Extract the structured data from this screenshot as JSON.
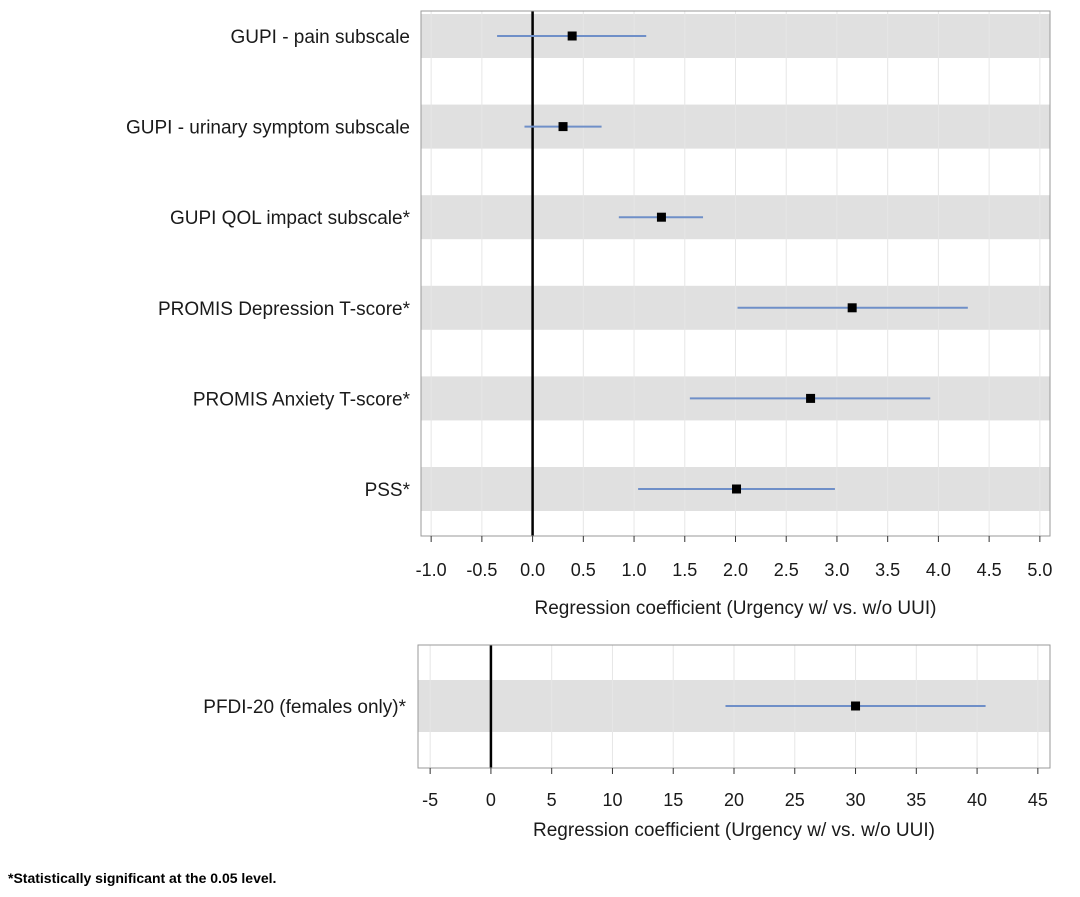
{
  "chart_data": [
    {
      "type": "forest",
      "xlabel": "Regression coefficient (Urgency w/ vs. w/o UUI)",
      "xlim": [
        -1.1,
        5.1
      ],
      "reference_line": 0,
      "grid": "vertical",
      "row_shading": "alternating",
      "ticks": [
        "-1.0",
        "-0.5",
        "0.0",
        "0.5",
        "1.0",
        "1.5",
        "2.0",
        "2.5",
        "3.0",
        "3.5",
        "4.0",
        "4.5",
        "5.0"
      ],
      "rows": [
        {
          "label": "GUPI - pain subscale",
          "estimate": 0.39,
          "lower": -0.35,
          "upper": 1.12
        },
        {
          "label": "GUPI - urinary symptom subscale",
          "estimate": 0.3,
          "lower": -0.08,
          "upper": 0.68
        },
        {
          "label": "GUPI QOL impact subscale*",
          "estimate": 1.27,
          "lower": 0.85,
          "upper": 1.68
        },
        {
          "label": "PROMIS Depression T-score*",
          "estimate": 3.15,
          "lower": 2.02,
          "upper": 4.29
        },
        {
          "label": "PROMIS Anxiety T-score*",
          "estimate": 2.74,
          "lower": 1.55,
          "upper": 3.92
        },
        {
          "label": "PSS*",
          "estimate": 2.01,
          "lower": 1.04,
          "upper": 2.98
        }
      ]
    },
    {
      "type": "forest",
      "xlabel": "Regression coefficient (Urgency w/ vs. w/o UUI)",
      "xlim": [
        -6,
        46
      ],
      "reference_line": 0,
      "grid": "vertical",
      "row_shading": "alternating",
      "ticks": [
        "-5",
        "0",
        "5",
        "10",
        "15",
        "20",
        "25",
        "30",
        "35",
        "40",
        "45"
      ],
      "rows": [
        {
          "label": "PFDI-20 (females only)*",
          "estimate": 30.0,
          "lower": 19.3,
          "upper": 40.7
        }
      ]
    }
  ],
  "colors": {
    "ci_line": "#6f8fc8",
    "marker": "#000000",
    "row_band": "#e0e0e0",
    "grid": "#e6e6e6",
    "frame": "#9a9a9a",
    "reference_line": "#000000"
  },
  "footnote": "*Statistically significant at the 0.05 level."
}
